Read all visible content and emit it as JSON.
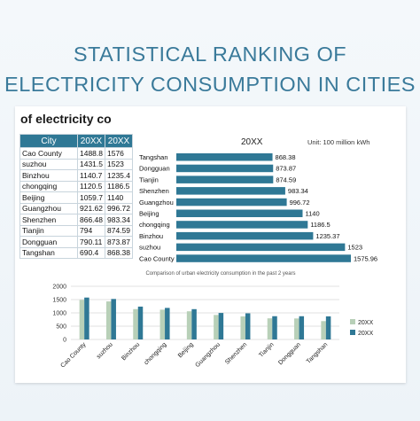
{
  "page": {
    "title_line1": "STATISTICAL RANKING OF",
    "title_line2": "ELECTRICITY CONSUMPTION IN CITIES",
    "sheet_title": "of electricity co"
  },
  "table": {
    "headers": [
      "City",
      "20XX",
      "20XX"
    ],
    "rows": [
      [
        "Cao County",
        "1488.8",
        "1576"
      ],
      [
        "suzhou",
        "1431.5",
        "1523"
      ],
      [
        "Binzhou",
        "1140.7",
        "1235.4"
      ],
      [
        "chongqing",
        "1120.5",
        "1186.5"
      ],
      [
        "Beijing",
        "1059.7",
        "1140"
      ],
      [
        "Guangzhou",
        "921.62",
        "996.72"
      ],
      [
        "Shenzhen",
        "866.48",
        "983.34"
      ],
      [
        "Tianjin",
        "794",
        "874.59"
      ],
      [
        "Dongguan",
        "790.11",
        "873.87"
      ],
      [
        "Tangshan",
        "690.4",
        "868.38"
      ]
    ]
  },
  "colors": {
    "header": "#2f7895",
    "bar_dark": "#2f7895",
    "bar_light": "#b8d0b8"
  },
  "chart_data": [
    {
      "type": "bar",
      "orientation": "horizontal",
      "title": "20XX",
      "subtitle": "Unit: 100 million kWh",
      "categories": [
        "Tangshan",
        "Dongguan",
        "Tianjin",
        "Shenzhen",
        "Guangzhou",
        "Beijing",
        "chongqing",
        "Binzhou",
        "suzhou",
        "Cao County"
      ],
      "values": [
        868.38,
        873.87,
        874.59,
        983.34,
        996.72,
        1140,
        1186.5,
        1235.37,
        1523,
        1575.96
      ],
      "value_labels": [
        "868.38",
        "873.87",
        "874.59",
        "983.34",
        "996.72",
        "1140",
        "1186.5",
        "1235.37",
        "1523",
        "1575.96"
      ]
    },
    {
      "type": "bar",
      "title": "Comparison of urban electricity consumption in the past 2 years",
      "categories": [
        "Cao County",
        "suzhou",
        "Binzhou",
        "chongqing",
        "Beijing",
        "Guangzhou",
        "Shenzhen",
        "Tianjin",
        "Dongguan",
        "Tangshan"
      ],
      "series": [
        {
          "name": "20XX",
          "values": [
            1488.8,
            1431.5,
            1140.7,
            1120.5,
            1059.7,
            921.62,
            866.48,
            794,
            790.11,
            690.4
          ]
        },
        {
          "name": "20XX",
          "values": [
            1576,
            1523,
            1235.4,
            1186.5,
            1140,
            996.72,
            983.34,
            874.59,
            873.87,
            868.38
          ]
        }
      ],
      "yticks": [
        "2000",
        "1500",
        "1000",
        "500",
        "0"
      ],
      "ylim": [
        0,
        2000
      ],
      "grid": true,
      "legend": "right"
    }
  ]
}
